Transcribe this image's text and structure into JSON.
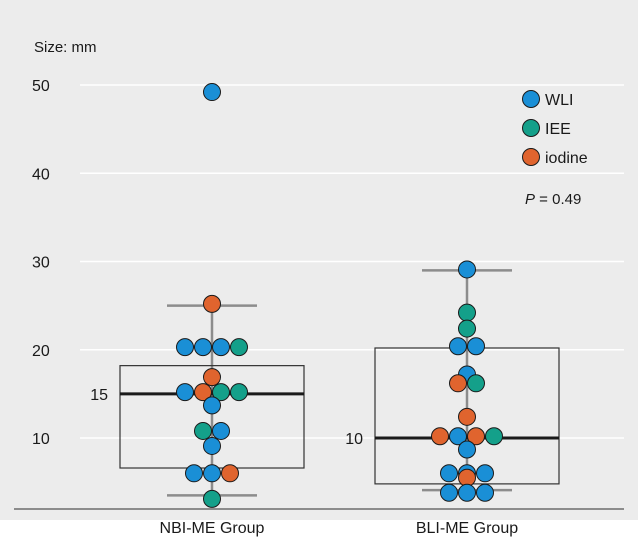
{
  "chart_data": {
    "type": "box-swarm",
    "ylabel": "Size: mm",
    "yticks": [
      10,
      20,
      30,
      40,
      50
    ],
    "ylim": [
      2,
      55
    ],
    "grid": true,
    "legend_position": "top-right",
    "legend": [
      {
        "label": "WLI",
        "color": "#1a8fd6"
      },
      {
        "label": "IEE",
        "color": "#14a08a"
      },
      {
        "label": "iodine",
        "color": "#e0642e"
      }
    ],
    "annotation": {
      "italic": "P",
      "rest": " = 0.49"
    },
    "categories": [
      "NBI-ME Group",
      "BLI-ME Group"
    ],
    "boxes": [
      {
        "category": "NBI-ME Group",
        "q1": 6.6,
        "median": 15,
        "q3": 18.2,
        "whisker_low": 3.5,
        "whisker_high": 25,
        "median_label": "15"
      },
      {
        "category": "BLI-ME Group",
        "q1": 4.8,
        "median": 10,
        "q3": 20.2,
        "whisker_low": 4.1,
        "whisker_high": 29,
        "median_label": "10"
      }
    ],
    "points": [
      {
        "group": 0,
        "method": "WLI",
        "y": 49.2
      },
      {
        "group": 0,
        "method": "iodine",
        "y": 25.2
      },
      {
        "group": 0,
        "method": "WLI",
        "y": 20.3
      },
      {
        "group": 0,
        "method": "WLI",
        "y": 20.3
      },
      {
        "group": 0,
        "method": "WLI",
        "y": 20.3
      },
      {
        "group": 0,
        "method": "IEE",
        "y": 20.3
      },
      {
        "group": 0,
        "method": "iodine",
        "y": 16.9
      },
      {
        "group": 0,
        "method": "WLI",
        "y": 15.2
      },
      {
        "group": 0,
        "method": "iodine",
        "y": 15.2
      },
      {
        "group": 0,
        "method": "IEE",
        "y": 15.2
      },
      {
        "group": 0,
        "method": "IEE",
        "y": 15.2
      },
      {
        "group": 0,
        "method": "WLI",
        "y": 13.7
      },
      {
        "group": 0,
        "method": "IEE",
        "y": 10.8
      },
      {
        "group": 0,
        "method": "WLI",
        "y": 10.8
      },
      {
        "group": 0,
        "method": "WLI",
        "y": 9.1
      },
      {
        "group": 0,
        "method": "WLI",
        "y": 6.0
      },
      {
        "group": 0,
        "method": "WLI",
        "y": 6.0
      },
      {
        "group": 0,
        "method": "iodine",
        "y": 6.0
      },
      {
        "group": 0,
        "method": "IEE",
        "y": 3.1
      },
      {
        "group": 1,
        "method": "WLI",
        "y": 29.1
      },
      {
        "group": 1,
        "method": "IEE",
        "y": 24.2
      },
      {
        "group": 1,
        "method": "IEE",
        "y": 22.4
      },
      {
        "group": 1,
        "method": "WLI",
        "y": 20.4
      },
      {
        "group": 1,
        "method": "WLI",
        "y": 20.4
      },
      {
        "group": 1,
        "method": "WLI",
        "y": 17.2
      },
      {
        "group": 1,
        "method": "iodine",
        "y": 16.2
      },
      {
        "group": 1,
        "method": "IEE",
        "y": 16.2
      },
      {
        "group": 1,
        "method": "iodine",
        "y": 12.4
      },
      {
        "group": 1,
        "method": "iodine",
        "y": 10.2
      },
      {
        "group": 1,
        "method": "WLI",
        "y": 10.2
      },
      {
        "group": 1,
        "method": "iodine",
        "y": 10.2
      },
      {
        "group": 1,
        "method": "IEE",
        "y": 10.2
      },
      {
        "group": 1,
        "method": "WLI",
        "y": 8.7
      },
      {
        "group": 1,
        "method": "WLI",
        "y": 6.0
      },
      {
        "group": 1,
        "method": "WLI",
        "y": 6.0
      },
      {
        "group": 1,
        "method": "WLI",
        "y": 6.0
      },
      {
        "group": 1,
        "method": "iodine",
        "y": 5.5
      },
      {
        "group": 1,
        "method": "WLI",
        "y": 3.8
      },
      {
        "group": 1,
        "method": "WLI",
        "y": 3.8
      },
      {
        "group": 1,
        "method": "WLI",
        "y": 3.8
      }
    ]
  }
}
